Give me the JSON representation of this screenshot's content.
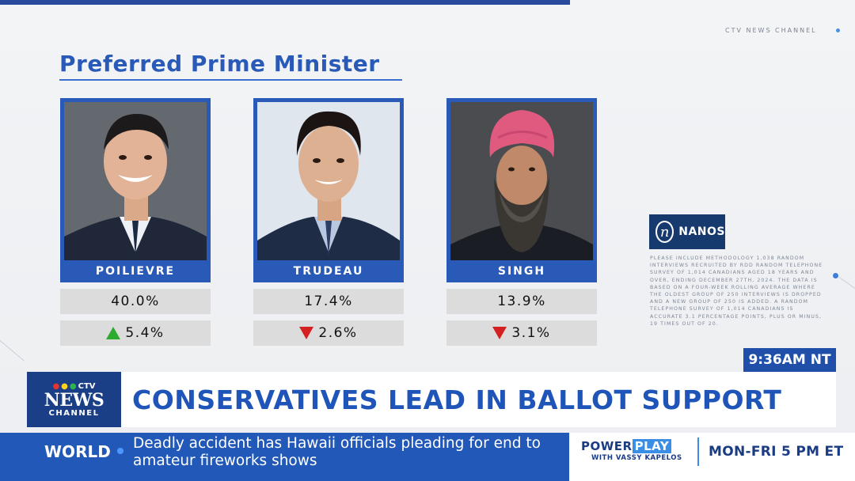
{
  "broadcast": {
    "watermark": "CTV NEWS CHANNEL",
    "time": "9:36AM NT"
  },
  "graphic": {
    "title": "Preferred Prime Minister",
    "candidates": [
      {
        "name": "POILIEVRE",
        "percent": "40.0%",
        "change": "5.4%",
        "direction": "up",
        "photo": "portrait-poilievre"
      },
      {
        "name": "TRUDEAU",
        "percent": "17.4%",
        "change": "2.6%",
        "direction": "down",
        "photo": "portrait-trudeau"
      },
      {
        "name": "SINGH",
        "percent": "13.9%",
        "change": "3.1%",
        "direction": "down",
        "photo": "portrait-singh"
      }
    ],
    "pollster": "NANOS",
    "methodology": "PLEASE INCLUDE METHODOLOGY 1,038 RANDOM INTERVIEWS RECRUITED BY RDD RANDOM TELEPHONE SURVEY OF 1,014 CANADIANS AGED 18 YEARS AND OVER, ENDING DECEMBER 27TH, 2024. THE DATA IS BASED ON A FOUR-WEEK ROLLING AVERAGE WHERE THE OLDEST GROUP OF 250 INTERVIEWS IS DROPPED AND A NEW GROUP OF 250 IS ADDED. A RANDOM TELEPHONE SURVEY OF 1,014 CANADIANS IS ACCURATE 3.1 PERCENTAGE POINTS, PLUS OR MINUS, 19 TIMES OUT OF 20."
  },
  "lower_third": {
    "logo_ctv": "CTV",
    "logo_news": "NEWS",
    "logo_channel": "CHANNEL",
    "headline": "CONSERVATIVES LEAD IN BALLOT SUPPORT"
  },
  "ticker": {
    "section": "WORLD",
    "text": "Deadly accident has Hawaii officials pleading for end to amateur fireworks shows"
  },
  "promo": {
    "show_part1": "POWER",
    "show_part2": "PLAY",
    "host": "WITH VASSY KAPELOS",
    "schedule": "MON-FRI 5 PM ET"
  },
  "colors": {
    "accent_blue": "#2a5ab8",
    "up_green": "#2eaa2e",
    "down_red": "#d42020"
  }
}
